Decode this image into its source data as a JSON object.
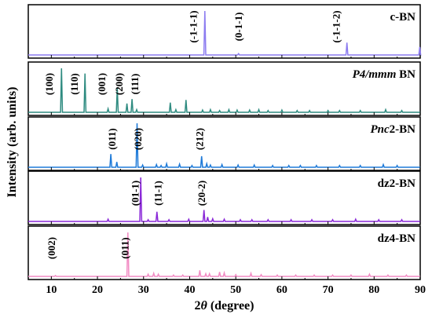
{
  "chart_data": {
    "type": "line",
    "xlabel_pre": "2",
    "xlabel_theta": "θ",
    "xlabel_post": " (degree)",
    "ylabel": "Intensity (arb. units)",
    "xlim": [
      5,
      90
    ],
    "xticks": [
      10,
      20,
      30,
      40,
      50,
      60,
      70,
      80,
      90
    ],
    "panels": [
      {
        "name_parts": [
          {
            "text": "c-BN",
            "italic": false
          }
        ],
        "color": "#8c7cf0",
        "peaks": [
          [
            43.3,
            1.0
          ],
          [
            50.6,
            0.03
          ],
          [
            74.1,
            0.28
          ],
          [
            89.9,
            0.18
          ]
        ],
        "labels": [
          {
            "text": "(-1-1-1)",
            "x": 41.0
          },
          {
            "text": "(0-1-1)",
            "x": 50.8
          },
          {
            "text": "(-1-1-2)",
            "x": 72.0
          }
        ]
      },
      {
        "name_parts": [
          {
            "text": "P4/mmm",
            "italic": true
          },
          {
            "text": " BN",
            "italic": false
          }
        ],
        "color": "#2e8b80",
        "peaks": [
          [
            12.2,
            1.0
          ],
          [
            17.3,
            0.88
          ],
          [
            22.3,
            0.08
          ],
          [
            24.3,
            0.55
          ],
          [
            26.4,
            0.2
          ],
          [
            27.5,
            0.3
          ],
          [
            28.5,
            0.06
          ],
          [
            35.8,
            0.22
          ],
          [
            37.0,
            0.06
          ],
          [
            39.2,
            0.28
          ],
          [
            42.8,
            0.05
          ],
          [
            44.5,
            0.06
          ],
          [
            46.5,
            0.04
          ],
          [
            48.5,
            0.06
          ],
          [
            50.3,
            0.05
          ],
          [
            53.0,
            0.05
          ],
          [
            55.0,
            0.06
          ],
          [
            57.0,
            0.04
          ],
          [
            60.0,
            0.05
          ],
          [
            63.3,
            0.04
          ],
          [
            66.0,
            0.04
          ],
          [
            70.0,
            0.04
          ],
          [
            72.5,
            0.04
          ],
          [
            77.0,
            0.04
          ],
          [
            82.5,
            0.06
          ],
          [
            86.0,
            0.04
          ]
        ],
        "labels": [
          {
            "text": "(100)",
            "x": 9.8
          },
          {
            "text": "(110)",
            "x": 15.2
          },
          {
            "text": "(001)",
            "x": 21.2
          },
          {
            "text": "(200)",
            "x": 24.9
          },
          {
            "text": "(111)",
            "x": 28.3
          }
        ]
      },
      {
        "name_parts": [
          {
            "text": "Pnc",
            "italic": true
          },
          {
            "text": "2-BN",
            "italic": false
          }
        ],
        "color": "#1e7ad8",
        "peaks": [
          [
            22.9,
            0.3
          ],
          [
            24.2,
            0.12
          ],
          [
            28.6,
            1.0
          ],
          [
            29.8,
            0.05
          ],
          [
            32.8,
            0.06
          ],
          [
            33.8,
            0.04
          ],
          [
            35.0,
            0.08
          ],
          [
            37.8,
            0.07
          ],
          [
            40.5,
            0.04
          ],
          [
            42.6,
            0.25
          ],
          [
            43.7,
            0.08
          ],
          [
            44.5,
            0.05
          ],
          [
            47.0,
            0.06
          ],
          [
            50.5,
            0.05
          ],
          [
            54.0,
            0.05
          ],
          [
            58.0,
            0.04
          ],
          [
            61.5,
            0.04
          ],
          [
            64.0,
            0.04
          ],
          [
            67.5,
            0.04
          ],
          [
            72.5,
            0.04
          ],
          [
            77.0,
            0.04
          ],
          [
            82.0,
            0.06
          ],
          [
            85.0,
            0.04
          ]
        ],
        "labels": [
          {
            "text": "(011)",
            "x": 23.4
          },
          {
            "text": "(020)",
            "x": 29.0
          },
          {
            "text": "(212)",
            "x": 42.4
          }
        ]
      },
      {
        "name_parts": [
          {
            "text": "dz2-BN",
            "italic": false
          }
        ],
        "color": "#8a28d8",
        "peaks": [
          [
            22.3,
            0.05
          ],
          [
            29.4,
            1.0
          ],
          [
            31.0,
            0.04
          ],
          [
            32.9,
            0.22
          ],
          [
            35.5,
            0.04
          ],
          [
            39.8,
            0.05
          ],
          [
            43.1,
            0.26
          ],
          [
            43.9,
            0.1
          ],
          [
            45.0,
            0.06
          ],
          [
            47.5,
            0.05
          ],
          [
            51.0,
            0.04
          ],
          [
            53.5,
            0.04
          ],
          [
            57.0,
            0.04
          ],
          [
            62.0,
            0.04
          ],
          [
            66.5,
            0.04
          ],
          [
            71.0,
            0.04
          ],
          [
            76.0,
            0.05
          ],
          [
            81.0,
            0.04
          ],
          [
            86.0,
            0.04
          ]
        ],
        "labels": [
          {
            "text": "(01-1)",
            "x": 28.4
          },
          {
            "text": "(11-1)",
            "x": 33.4
          },
          {
            "text": "(20-2)",
            "x": 42.8
          }
        ]
      },
      {
        "name_parts": [
          {
            "text": "dz4-BN",
            "italic": false
          }
        ],
        "color": "#f28cc4",
        "peaks": [
          [
            10.9,
            0.02
          ],
          [
            26.6,
            1.0
          ],
          [
            31.0,
            0.05
          ],
          [
            32.2,
            0.07
          ],
          [
            33.2,
            0.05
          ],
          [
            36.5,
            0.03
          ],
          [
            38.5,
            0.03
          ],
          [
            42.2,
            0.14
          ],
          [
            43.5,
            0.06
          ],
          [
            44.3,
            0.06
          ],
          [
            46.5,
            0.1
          ],
          [
            47.5,
            0.08
          ],
          [
            50.0,
            0.04
          ],
          [
            53.3,
            0.07
          ],
          [
            55.5,
            0.04
          ],
          [
            59.0,
            0.03
          ],
          [
            63.0,
            0.03
          ],
          [
            67.0,
            0.03
          ],
          [
            71.0,
            0.03
          ],
          [
            75.0,
            0.03
          ],
          [
            79.0,
            0.05
          ],
          [
            83.0,
            0.03
          ],
          [
            87.0,
            0.03
          ]
        ],
        "labels": [
          {
            "text": "(002)",
            "x": 10.3
          },
          {
            "text": "(011)",
            "x": 26.2
          }
        ]
      }
    ]
  }
}
